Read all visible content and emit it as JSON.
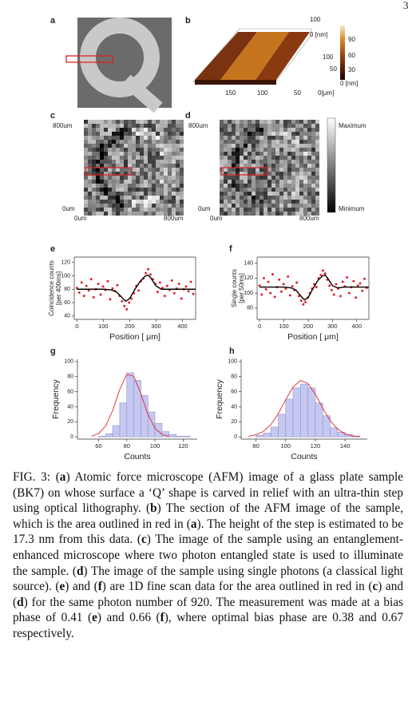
{
  "page_number": "3",
  "panels": {
    "a": {
      "label": "a"
    },
    "b": {
      "label": "b",
      "side_ticks": [
        "100",
        "0 [nm]",
        "100",
        "50"
      ],
      "x_ticks": [
        "150",
        "100",
        "50",
        "0[μm]"
      ],
      "colorbar_ticks": [
        "90",
        "60",
        "30",
        "0 [nm]"
      ]
    },
    "c": {
      "label": "c",
      "y_ticks": [
        "800um",
        "0um"
      ],
      "x_ticks": [
        "0um",
        "800um"
      ]
    },
    "d": {
      "label": "d",
      "y_ticks": [
        "800um",
        "0um"
      ],
      "x_ticks": [
        "0um",
        "800um"
      ]
    },
    "colorbar": {
      "max": "Maximum",
      "min": "Minimum"
    }
  },
  "chart_data": [
    {
      "label": "e",
      "type": "scatter",
      "xlabel": "Position [ μm]",
      "ylabel": [
        "Coincidence counts",
        "[per 400ms]"
      ],
      "xlim": [
        -10,
        450
      ],
      "ylim": [
        35,
        128
      ],
      "xticks": [
        0,
        100,
        200,
        300,
        400
      ],
      "yticks": [
        40,
        60,
        80,
        100,
        120
      ],
      "color": "#e3242b",
      "x": [
        0,
        9,
        18,
        27,
        36,
        45,
        54,
        63,
        72,
        81,
        90,
        99,
        108,
        117,
        126,
        135,
        144,
        153,
        162,
        171,
        180,
        189,
        198,
        207,
        216,
        225,
        234,
        243,
        252,
        261,
        270,
        279,
        288,
        297,
        306,
        315,
        324,
        333,
        342,
        351,
        360,
        369,
        378,
        387,
        396,
        405,
        414,
        423,
        432,
        441
      ],
      "values": [
        82,
        75,
        90,
        70,
        85,
        78,
        95,
        68,
        80,
        88,
        72,
        84,
        79,
        92,
        65,
        81,
        77,
        86,
        70,
        62,
        55,
        50,
        60,
        66,
        74,
        85,
        78,
        92,
        96,
        104,
        110,
        102,
        95,
        88,
        76,
        90,
        82,
        70,
        85,
        79,
        93,
        74,
        81,
        88,
        66,
        80,
        84,
        77,
        91,
        73
      ],
      "fit": {
        "color": "#000000",
        "x": [
          0,
          50,
          100,
          130,
          150,
          170,
          185,
          200,
          220,
          240,
          260,
          270,
          280,
          300,
          320,
          350,
          400,
          450
        ],
        "values": [
          80,
          80,
          80,
          79,
          76,
          68,
          62,
          66,
          80,
          92,
          100,
          101,
          97,
          85,
          80,
          80,
          80,
          80
        ]
      }
    },
    {
      "label": "f",
      "type": "scatter",
      "xlabel": "Position [ μm]",
      "ylabel": [
        "Single counts",
        "[per 50ms]"
      ],
      "xlim": [
        -10,
        450
      ],
      "ylim": [
        65,
        148
      ],
      "xticks": [
        0,
        100,
        200,
        300,
        400
      ],
      "yticks": [
        80,
        100,
        120,
        140
      ],
      "color": "#e3242b",
      "x": [
        0,
        9,
        18,
        27,
        36,
        45,
        54,
        63,
        72,
        81,
        90,
        99,
        108,
        117,
        126,
        135,
        144,
        153,
        162,
        171,
        180,
        189,
        198,
        207,
        216,
        225,
        234,
        243,
        252,
        261,
        270,
        279,
        288,
        297,
        306,
        315,
        324,
        333,
        342,
        351,
        360,
        369,
        378,
        387,
        396,
        405,
        414,
        423,
        432,
        441
      ],
      "values": [
        110,
        98,
        120,
        105,
        115,
        100,
        125,
        95,
        108,
        118,
        102,
        112,
        106,
        122,
        97,
        109,
        104,
        114,
        96,
        90,
        85,
        88,
        94,
        100,
        106,
        112,
        108,
        120,
        124,
        130,
        126,
        118,
        110,
        104,
        98,
        112,
        106,
        96,
        115,
        109,
        121,
        100,
        108,
        116,
        94,
        110,
        113,
        103,
        119,
        107
      ],
      "fit": {
        "color": "#000000",
        "x": [
          0,
          50,
          100,
          130,
          150,
          170,
          185,
          200,
          220,
          240,
          260,
          270,
          280,
          300,
          320,
          350,
          400,
          450
        ],
        "values": [
          108,
          108,
          108,
          107,
          104,
          96,
          91,
          94,
          106,
          117,
          123,
          124,
          120,
          110,
          107,
          108,
          108,
          108
        ]
      }
    },
    {
      "label": "g",
      "type": "histogram",
      "xlabel": "Counts",
      "ylabel": "Frequency",
      "xlim": [
        45,
        130
      ],
      "ylim": [
        -3,
        103
      ],
      "xticks": [
        60,
        80,
        100,
        120
      ],
      "yticks": [
        0,
        20,
        40,
        60,
        80,
        100
      ],
      "color": "#c5c8f0",
      "edgecolor": "#8f93c9",
      "bins": [
        60,
        65,
        70,
        75,
        80,
        85,
        90,
        95,
        100,
        105,
        110,
        115,
        120,
        125
      ],
      "values": [
        1,
        4,
        15,
        45,
        85,
        75,
        55,
        33,
        18,
        7,
        3,
        1,
        1
      ],
      "fit": {
        "color": "#e3242b",
        "x": [
          55,
          60,
          65,
          70,
          75,
          80,
          85,
          90,
          95,
          100,
          105,
          110
        ],
        "values": [
          0.9,
          4.3,
          14.3,
          35,
          62.8,
          83,
          80.4,
          57.3,
          30,
          11.5,
          3.2,
          0.7
        ]
      }
    },
    {
      "label": "h",
      "type": "histogram",
      "xlabel": "Counts",
      "ylabel": "Frequency",
      "xlim": [
        70,
        155
      ],
      "ylim": [
        -3,
        103
      ],
      "xticks": [
        80,
        100,
        120,
        140
      ],
      "yticks": [
        0,
        20,
        40,
        60,
        80,
        100
      ],
      "color": "#c5c8f0",
      "edgecolor": "#8f93c9",
      "bins": [
        80,
        85,
        90,
        95,
        100,
        105,
        110,
        115,
        120,
        125,
        130,
        135,
        140,
        145,
        150
      ],
      "values": [
        2,
        5,
        13,
        30,
        50,
        65,
        70,
        65,
        45,
        28,
        12,
        6,
        3,
        1
      ],
      "fit": {
        "color": "#e3242b",
        "x": [
          75,
          80,
          85,
          90,
          95,
          100,
          105,
          110,
          115,
          120,
          125,
          130,
          135,
          140,
          145,
          150
        ],
        "values": [
          0.8,
          2.7,
          7.2,
          16.2,
          30.8,
          49.3,
          66.2,
          74.7,
          71,
          56.6,
          38,
          21.4,
          10.2,
          4,
          1.4,
          0.4
        ]
      }
    }
  ],
  "caption": [
    {
      "text": "FIG. 3: (",
      "bold": false
    },
    {
      "text": "a",
      "bold": true
    },
    {
      "text": ") Atomic force microscope (AFM) image of a glass plate sample (BK7) on whose surface a ‘Q’ shape is carved in relief with an ultra-thin step using optical lithography. (",
      "bold": false
    },
    {
      "text": "b",
      "bold": true
    },
    {
      "text": ") The section of the AFM image of the sample, which is the area outlined in red in (",
      "bold": false
    },
    {
      "text": "a",
      "bold": true
    },
    {
      "text": "). The height of the step is estimated to be 17.3 nm from this data. (",
      "bold": false
    },
    {
      "text": "c",
      "bold": true
    },
    {
      "text": ") The image of the sample using an entanglement-enhanced microscope where two photon entangled state is used to illuminate the sample. (",
      "bold": false
    },
    {
      "text": "d",
      "bold": true
    },
    {
      "text": ") The image of the sample using single photons (a classical light source). (",
      "bold": false
    },
    {
      "text": "e",
      "bold": true
    },
    {
      "text": ") and (",
      "bold": false
    },
    {
      "text": "f",
      "bold": true
    },
    {
      "text": ") are 1D fine scan data for the area outlined in red in (",
      "bold": false
    },
    {
      "text": "c",
      "bold": true
    },
    {
      "text": ") and (",
      "bold": false
    },
    {
      "text": "d",
      "bold": true
    },
    {
      "text": ") for the same photon number of 920. The measurement was made at a bias phase of 0.41 (",
      "bold": false
    },
    {
      "text": "e",
      "bold": true
    },
    {
      "text": ") and 0.66 (",
      "bold": false
    },
    {
      "text": "f",
      "bold": true
    },
    {
      "text": "), where optimal bias phase are 0.38 and 0.67 respectively.",
      "bold": false
    }
  ]
}
